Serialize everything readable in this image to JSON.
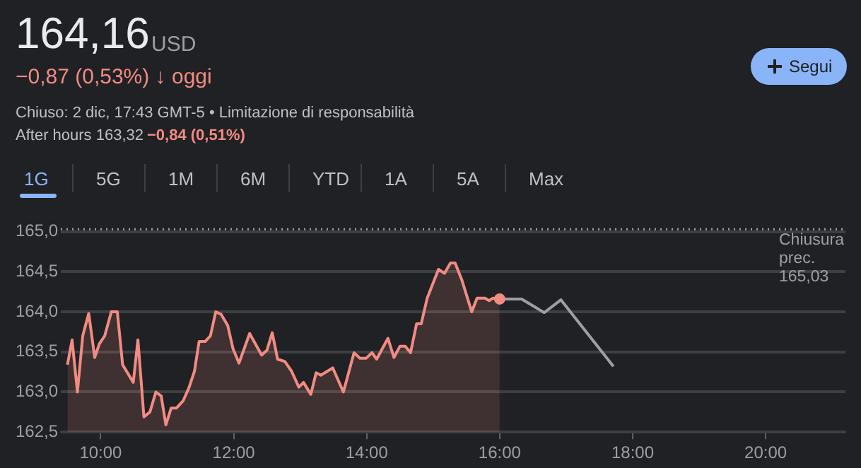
{
  "chart_data": {
    "type": "line",
    "title": "164,16",
    "annotations": [
      "USD",
      "−0,87 (0,53%) ↓ oggi",
      "Chiuso: 2 dic, 17:43 GMT-5 • Limitazione di responsabilità",
      "After hours 163,32",
      "−0,84 (0,51%)",
      "Segui",
      "1G",
      "5G",
      "1M",
      "6M",
      "YTD",
      "1A",
      "5A",
      "Max"
    ],
    "xlim": [
      9.4,
      21.2
    ],
    "xticks": [
      {
        "value": 10,
        "label": "10:00"
      },
      {
        "value": 12,
        "label": "12:00"
      },
      {
        "value": 14,
        "label": "14:00"
      },
      {
        "value": 16,
        "label": "16:00"
      },
      {
        "value": 18,
        "label": "18:00"
      },
      {
        "value": 20,
        "label": "20:00"
      }
    ],
    "ylim": [
      162.5,
      165.05
    ],
    "yticks": [
      {
        "value": 162.5,
        "label": "162,5"
      },
      {
        "value": 163,
        "label": "163,0"
      },
      {
        "value": 163.5,
        "label": "163,5"
      },
      {
        "value": 164,
        "label": "164,0"
      },
      {
        "value": 164.5,
        "label": "164,5"
      },
      {
        "value": 165,
        "label": "165,0"
      }
    ],
    "grid": "y",
    "legend": false,
    "ref_lines": [
      {
        "axis": "y",
        "value": 165.03,
        "label": "Chiusura prec. 165,03",
        "color": "#9aa0a6",
        "line_style": "dotted"
      }
    ],
    "series": [
      {
        "type": "area",
        "color": "#f28b82",
        "x": [
          9.5,
          9.57,
          9.65,
          9.73,
          9.82,
          9.91,
          9.98,
          10.06,
          10.16,
          10.25,
          10.33,
          10.49,
          10.56,
          10.65,
          10.74,
          10.83,
          10.91,
          10.98,
          11.06,
          11.14,
          11.24,
          11.33,
          11.41,
          11.48,
          11.57,
          11.65,
          11.73,
          11.81,
          11.91,
          11.99,
          12.08,
          12.24,
          12.42,
          12.5,
          12.58,
          12.66,
          12.77,
          12.87,
          12.98,
          13.05,
          13.16,
          13.24,
          13.31,
          13.49,
          13.65,
          13.81,
          13.9,
          13.99,
          14.08,
          14.15,
          14.32,
          14.41,
          14.5,
          14.58,
          14.66,
          14.75,
          14.82,
          14.91,
          15.08,
          15.17,
          15.26,
          15.33,
          15.43,
          15.58,
          15.66,
          15.78,
          15.84,
          15.9,
          16.0
        ],
        "values": [
          163.34,
          163.65,
          163.0,
          163.7,
          163.98,
          163.43,
          163.6,
          163.7,
          164.0,
          164.0,
          163.34,
          163.12,
          163.65,
          162.69,
          162.75,
          163.0,
          162.95,
          162.59,
          162.8,
          162.8,
          162.89,
          163.06,
          163.26,
          163.63,
          163.63,
          163.7,
          164.0,
          163.97,
          163.83,
          163.54,
          163.36,
          163.73,
          163.46,
          163.52,
          163.74,
          163.41,
          163.38,
          163.26,
          163.06,
          163.12,
          162.97,
          163.24,
          163.21,
          163.3,
          163.0,
          163.49,
          163.42,
          163.42,
          163.49,
          163.41,
          163.67,
          163.43,
          163.57,
          163.57,
          163.49,
          163.85,
          163.85,
          164.17,
          164.53,
          164.48,
          164.61,
          164.61,
          164.4,
          164.0,
          164.17,
          164.17,
          164.14,
          164.17,
          164.16
        ]
      },
      {
        "type": "line",
        "color": "#9aa0a6",
        "x": [
          16.0,
          16.33,
          16.67,
          16.92,
          17.71
        ],
        "values": [
          164.16,
          164.16,
          163.99,
          164.15,
          163.32
        ]
      }
    ]
  }
}
